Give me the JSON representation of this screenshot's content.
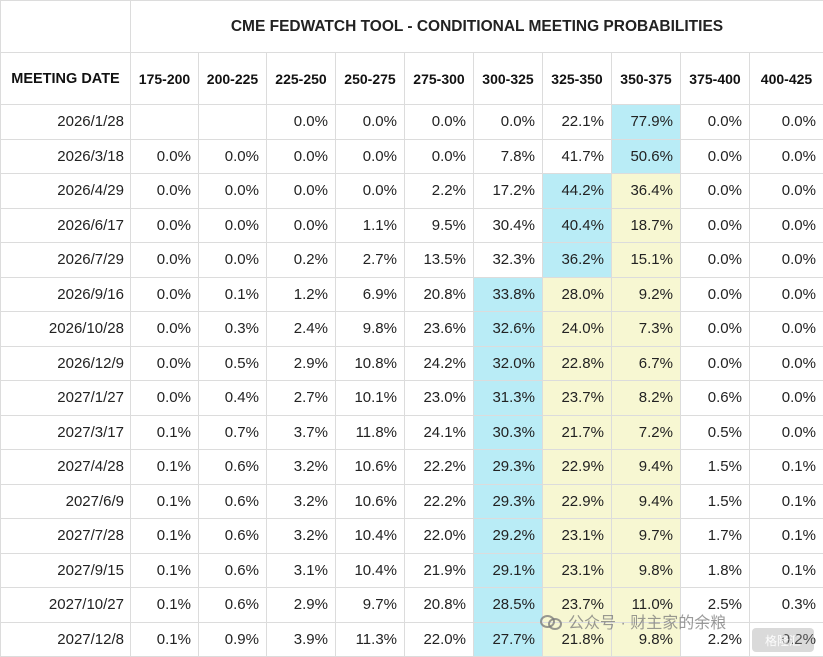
{
  "chart_data": {
    "type": "table",
    "title": "CME FEDWATCH TOOL - CONDITIONAL MEETING PROBABILITIES",
    "row_header": "MEETING DATE",
    "columns": [
      "175-200",
      "200-225",
      "225-250",
      "250-275",
      "275-300",
      "300-325",
      "325-350",
      "350-375",
      "375-400",
      "400-425"
    ],
    "rows": [
      {
        "date": "2026/1/28",
        "values": [
          "",
          "",
          "0.0%",
          "0.0%",
          "0.0%",
          "0.0%",
          "22.1%",
          "77.9%",
          "0.0%",
          "0.0%"
        ],
        "highlight": {
          "7": "blue"
        }
      },
      {
        "date": "2026/3/18",
        "values": [
          "0.0%",
          "0.0%",
          "0.0%",
          "0.0%",
          "0.0%",
          "7.8%",
          "41.7%",
          "50.6%",
          "0.0%",
          "0.0%"
        ],
        "highlight": {
          "7": "blue"
        }
      },
      {
        "date": "2026/4/29",
        "values": [
          "0.0%",
          "0.0%",
          "0.0%",
          "0.0%",
          "2.2%",
          "17.2%",
          "44.2%",
          "36.4%",
          "0.0%",
          "0.0%"
        ],
        "highlight": {
          "6": "blue",
          "7": "yellow"
        }
      },
      {
        "date": "2026/6/17",
        "values": [
          "0.0%",
          "0.0%",
          "0.0%",
          "1.1%",
          "9.5%",
          "30.4%",
          "40.4%",
          "18.7%",
          "0.0%",
          "0.0%"
        ],
        "highlight": {
          "6": "blue",
          "7": "yellow"
        }
      },
      {
        "date": "2026/7/29",
        "values": [
          "0.0%",
          "0.0%",
          "0.2%",
          "2.7%",
          "13.5%",
          "32.3%",
          "36.2%",
          "15.1%",
          "0.0%",
          "0.0%"
        ],
        "highlight": {
          "6": "blue",
          "7": "yellow"
        }
      },
      {
        "date": "2026/9/16",
        "values": [
          "0.0%",
          "0.1%",
          "1.2%",
          "6.9%",
          "20.8%",
          "33.8%",
          "28.0%",
          "9.2%",
          "0.0%",
          "0.0%"
        ],
        "highlight": {
          "5": "blue",
          "6": "yellow",
          "7": "yellow"
        }
      },
      {
        "date": "2026/10/28",
        "values": [
          "0.0%",
          "0.3%",
          "2.4%",
          "9.8%",
          "23.6%",
          "32.6%",
          "24.0%",
          "7.3%",
          "0.0%",
          "0.0%"
        ],
        "highlight": {
          "5": "blue",
          "6": "yellow",
          "7": "yellow"
        }
      },
      {
        "date": "2026/12/9",
        "values": [
          "0.0%",
          "0.5%",
          "2.9%",
          "10.8%",
          "24.2%",
          "32.0%",
          "22.8%",
          "6.7%",
          "0.0%",
          "0.0%"
        ],
        "highlight": {
          "5": "blue",
          "6": "yellow",
          "7": "yellow"
        }
      },
      {
        "date": "2027/1/27",
        "values": [
          "0.0%",
          "0.4%",
          "2.7%",
          "10.1%",
          "23.0%",
          "31.3%",
          "23.7%",
          "8.2%",
          "0.6%",
          "0.0%"
        ],
        "highlight": {
          "5": "blue",
          "6": "yellow",
          "7": "yellow"
        }
      },
      {
        "date": "2027/3/17",
        "values": [
          "0.1%",
          "0.7%",
          "3.7%",
          "11.8%",
          "24.1%",
          "30.3%",
          "21.7%",
          "7.2%",
          "0.5%",
          "0.0%"
        ],
        "highlight": {
          "5": "blue",
          "6": "yellow",
          "7": "yellow"
        }
      },
      {
        "date": "2027/4/28",
        "values": [
          "0.1%",
          "0.6%",
          "3.2%",
          "10.6%",
          "22.2%",
          "29.3%",
          "22.9%",
          "9.4%",
          "1.5%",
          "0.1%"
        ],
        "highlight": {
          "5": "blue",
          "6": "yellow",
          "7": "yellow"
        }
      },
      {
        "date": "2027/6/9",
        "values": [
          "0.1%",
          "0.6%",
          "3.2%",
          "10.6%",
          "22.2%",
          "29.3%",
          "22.9%",
          "9.4%",
          "1.5%",
          "0.1%"
        ],
        "highlight": {
          "5": "blue",
          "6": "yellow",
          "7": "yellow"
        }
      },
      {
        "date": "2027/7/28",
        "values": [
          "0.1%",
          "0.6%",
          "3.2%",
          "10.4%",
          "22.0%",
          "29.2%",
          "23.1%",
          "9.7%",
          "1.7%",
          "0.1%"
        ],
        "highlight": {
          "5": "blue",
          "6": "yellow",
          "7": "yellow"
        }
      },
      {
        "date": "2027/9/15",
        "values": [
          "0.1%",
          "0.6%",
          "3.1%",
          "10.4%",
          "21.9%",
          "29.1%",
          "23.1%",
          "9.8%",
          "1.8%",
          "0.1%"
        ],
        "highlight": {
          "5": "blue",
          "6": "yellow",
          "7": "yellow"
        }
      },
      {
        "date": "2027/10/27",
        "values": [
          "0.1%",
          "0.6%",
          "2.9%",
          "9.7%",
          "20.8%",
          "28.5%",
          "23.7%",
          "11.0%",
          "2.5%",
          "0.3%"
        ],
        "highlight": {
          "5": "blue",
          "6": "yellow",
          "7": "yellow"
        }
      },
      {
        "date": "2027/12/8",
        "values": [
          "0.1%",
          "0.9%",
          "3.9%",
          "11.3%",
          "22.0%",
          "27.7%",
          "21.8%",
          "9.8%",
          "2.2%",
          "0.2%"
        ],
        "highlight": {
          "5": "blue",
          "6": "yellow",
          "7": "yellow"
        }
      }
    ]
  },
  "colors": {
    "highlight_blue": "#b9ecf6",
    "highlight_yellow": "#f7f7d2",
    "border": "#dcdcdc"
  },
  "watermark": {
    "text": "公众号 · 财主家的余粮",
    "logo_text": "格隆汇"
  }
}
